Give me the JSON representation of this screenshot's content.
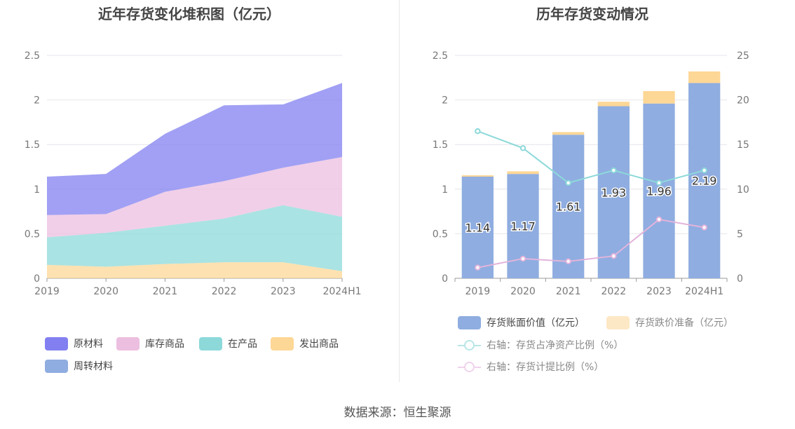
{
  "source_text": "数据来源：恒生聚源",
  "chart_data": [
    {
      "type": "area",
      "stacked": true,
      "title": "近年存货变化堆积图（亿元）",
      "categories": [
        "2019",
        "2020",
        "2021",
        "2022",
        "2023",
        "2024H1"
      ],
      "y_ticks": [
        "0",
        "0.5",
        "1",
        "1.5",
        "2",
        "2.5"
      ],
      "ylim": [
        0,
        2.5
      ],
      "grid": true,
      "legend_position": "bottom",
      "series": [
        {
          "name": "发出商品",
          "color": "#fdd796",
          "values": [
            0.15,
            0.13,
            0.16,
            0.18,
            0.18,
            0.08
          ]
        },
        {
          "name": "在产品",
          "color": "#8dd9da",
          "values": [
            0.31,
            0.38,
            0.43,
            0.49,
            0.64,
            0.61
          ]
        },
        {
          "name": "库存商品",
          "color": "#ecbfe0",
          "values": [
            0.25,
            0.21,
            0.38,
            0.42,
            0.42,
            0.67
          ]
        },
        {
          "name": "原材料",
          "color": "#8280f0",
          "values": [
            0.43,
            0.45,
            0.65,
            0.85,
            0.71,
            0.83
          ]
        },
        {
          "name": "周转材料",
          "color": "#8fade0",
          "values": [
            0,
            0,
            0,
            0,
            0,
            0
          ]
        }
      ],
      "legend_order": [
        "原材料",
        "库存商品",
        "在产品",
        "发出商品",
        "周转材料"
      ]
    },
    {
      "type": "bar",
      "stacked": true,
      "title": "历年存货变动情况",
      "categories": [
        "2019",
        "2020",
        "2021",
        "2022",
        "2023",
        "2024H1"
      ],
      "y_ticks": [
        "0",
        "0.5",
        "1",
        "1.5",
        "2",
        "2.5"
      ],
      "y2_ticks": [
        "0",
        "5",
        "10",
        "15",
        "20",
        "25"
      ],
      "ylim": [
        0,
        2.5
      ],
      "y2lim": [
        0,
        25
      ],
      "grid": true,
      "legend_position": "bottom",
      "series": [
        {
          "name": "存货账面价值（亿元）",
          "color": "#8fade0",
          "values": [
            1.14,
            1.17,
            1.61,
            1.93,
            1.96,
            2.19
          ],
          "labels": [
            "1.14",
            "1.17",
            "1.61",
            "1.93",
            "1.96",
            "2.19"
          ]
        },
        {
          "name": "存货跌价准备（亿元）",
          "color": "#fdd796",
          "values": [
            0.015,
            0.03,
            0.03,
            0.05,
            0.14,
            0.13
          ]
        }
      ],
      "line_series": [
        {
          "name": "右轴：存货占净资产比例（%）",
          "color": "#8dd9da",
          "axis": "right",
          "values": [
            16.5,
            14.6,
            10.7,
            12.1,
            10.7,
            12.1
          ]
        },
        {
          "name": "右轴：存货计提比例（%）",
          "color": "#e2b4dc",
          "axis": "right",
          "values": [
            1.2,
            2.2,
            1.9,
            2.5,
            6.6,
            5.7
          ]
        }
      ]
    }
  ]
}
